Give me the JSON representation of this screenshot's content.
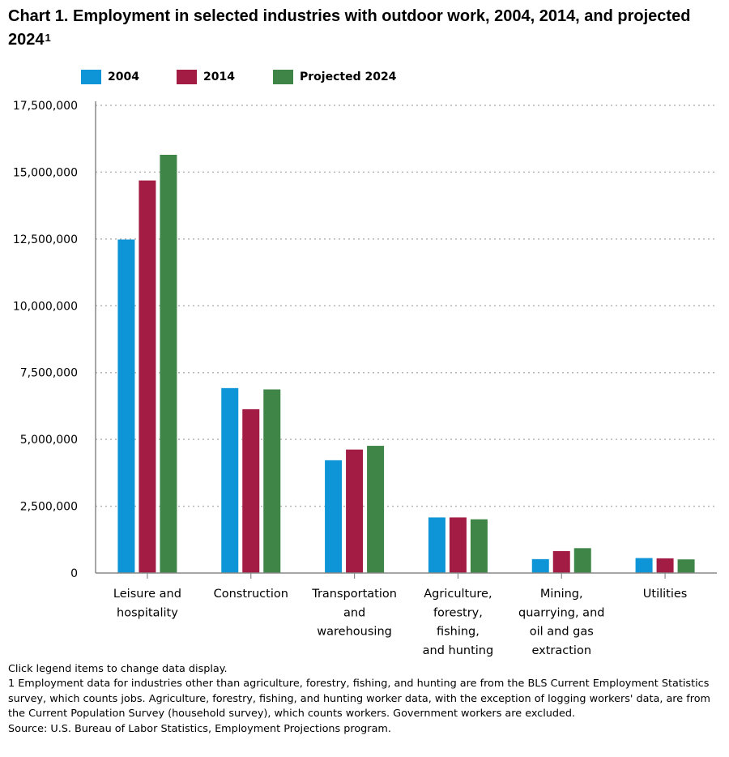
{
  "title_text": "Chart 1. Employment in selected industries with outdoor work, 2004, 2014, and projected 2024",
  "title_sup": "1",
  "notes": {
    "click_hint": "Click legend items to change data display.",
    "footnote": " 1 Employment data for industries other than agriculture, forestry, fishing, and hunting are from the BLS Current Employment Statistics survey, which counts jobs. Agriculture, forestry, fishing, and hunting worker data, with the exception of logging workers' data, are from the Current Population Survey (household survey), which counts workers. Government workers are excluded.",
    "source": "Source: U.S. Bureau of Labor Statistics, Employment Projections program."
  },
  "chart_data": {
    "type": "bar",
    "title": "Chart 1. Employment in selected industries with outdoor work, 2004, 2014, and projected 2024",
    "xlabel": "",
    "ylabel": "",
    "categories": [
      [
        "Leisure and",
        "hospitality"
      ],
      [
        "Construction"
      ],
      [
        "Transportation",
        "and",
        "warehousing"
      ],
      [
        "Agriculture,",
        "forestry,",
        "fishing,",
        "and hunting"
      ],
      [
        "Mining,",
        "quarrying, and",
        "oil and gas",
        "extraction"
      ],
      [
        "Utilities"
      ]
    ],
    "series": [
      {
        "name": "2004",
        "color": "#0d95d8",
        "values": [
          12480000,
          6920000,
          4220000,
          2080000,
          520000,
          560000
        ]
      },
      {
        "name": "2014",
        "color": "#a31c44",
        "values": [
          14690000,
          6130000,
          4620000,
          2080000,
          820000,
          550000
        ]
      },
      {
        "name": "Projected 2024",
        "color": "#3e8547",
        "values": [
          15650000,
          6870000,
          4760000,
          2010000,
          930000,
          510000
        ]
      }
    ],
    "ylim": [
      0,
      17500000
    ],
    "yticks": [
      0,
      2500000,
      5000000,
      7500000,
      10000000,
      12500000,
      15000000,
      17500000
    ],
    "ytick_labels": [
      "0",
      "2,500,000",
      "5,000,000",
      "7,500,000",
      "10,000,000",
      "12,500,000",
      "15,000,000",
      "17,500,000"
    ],
    "grid": true,
    "legend_position": "top-left"
  }
}
